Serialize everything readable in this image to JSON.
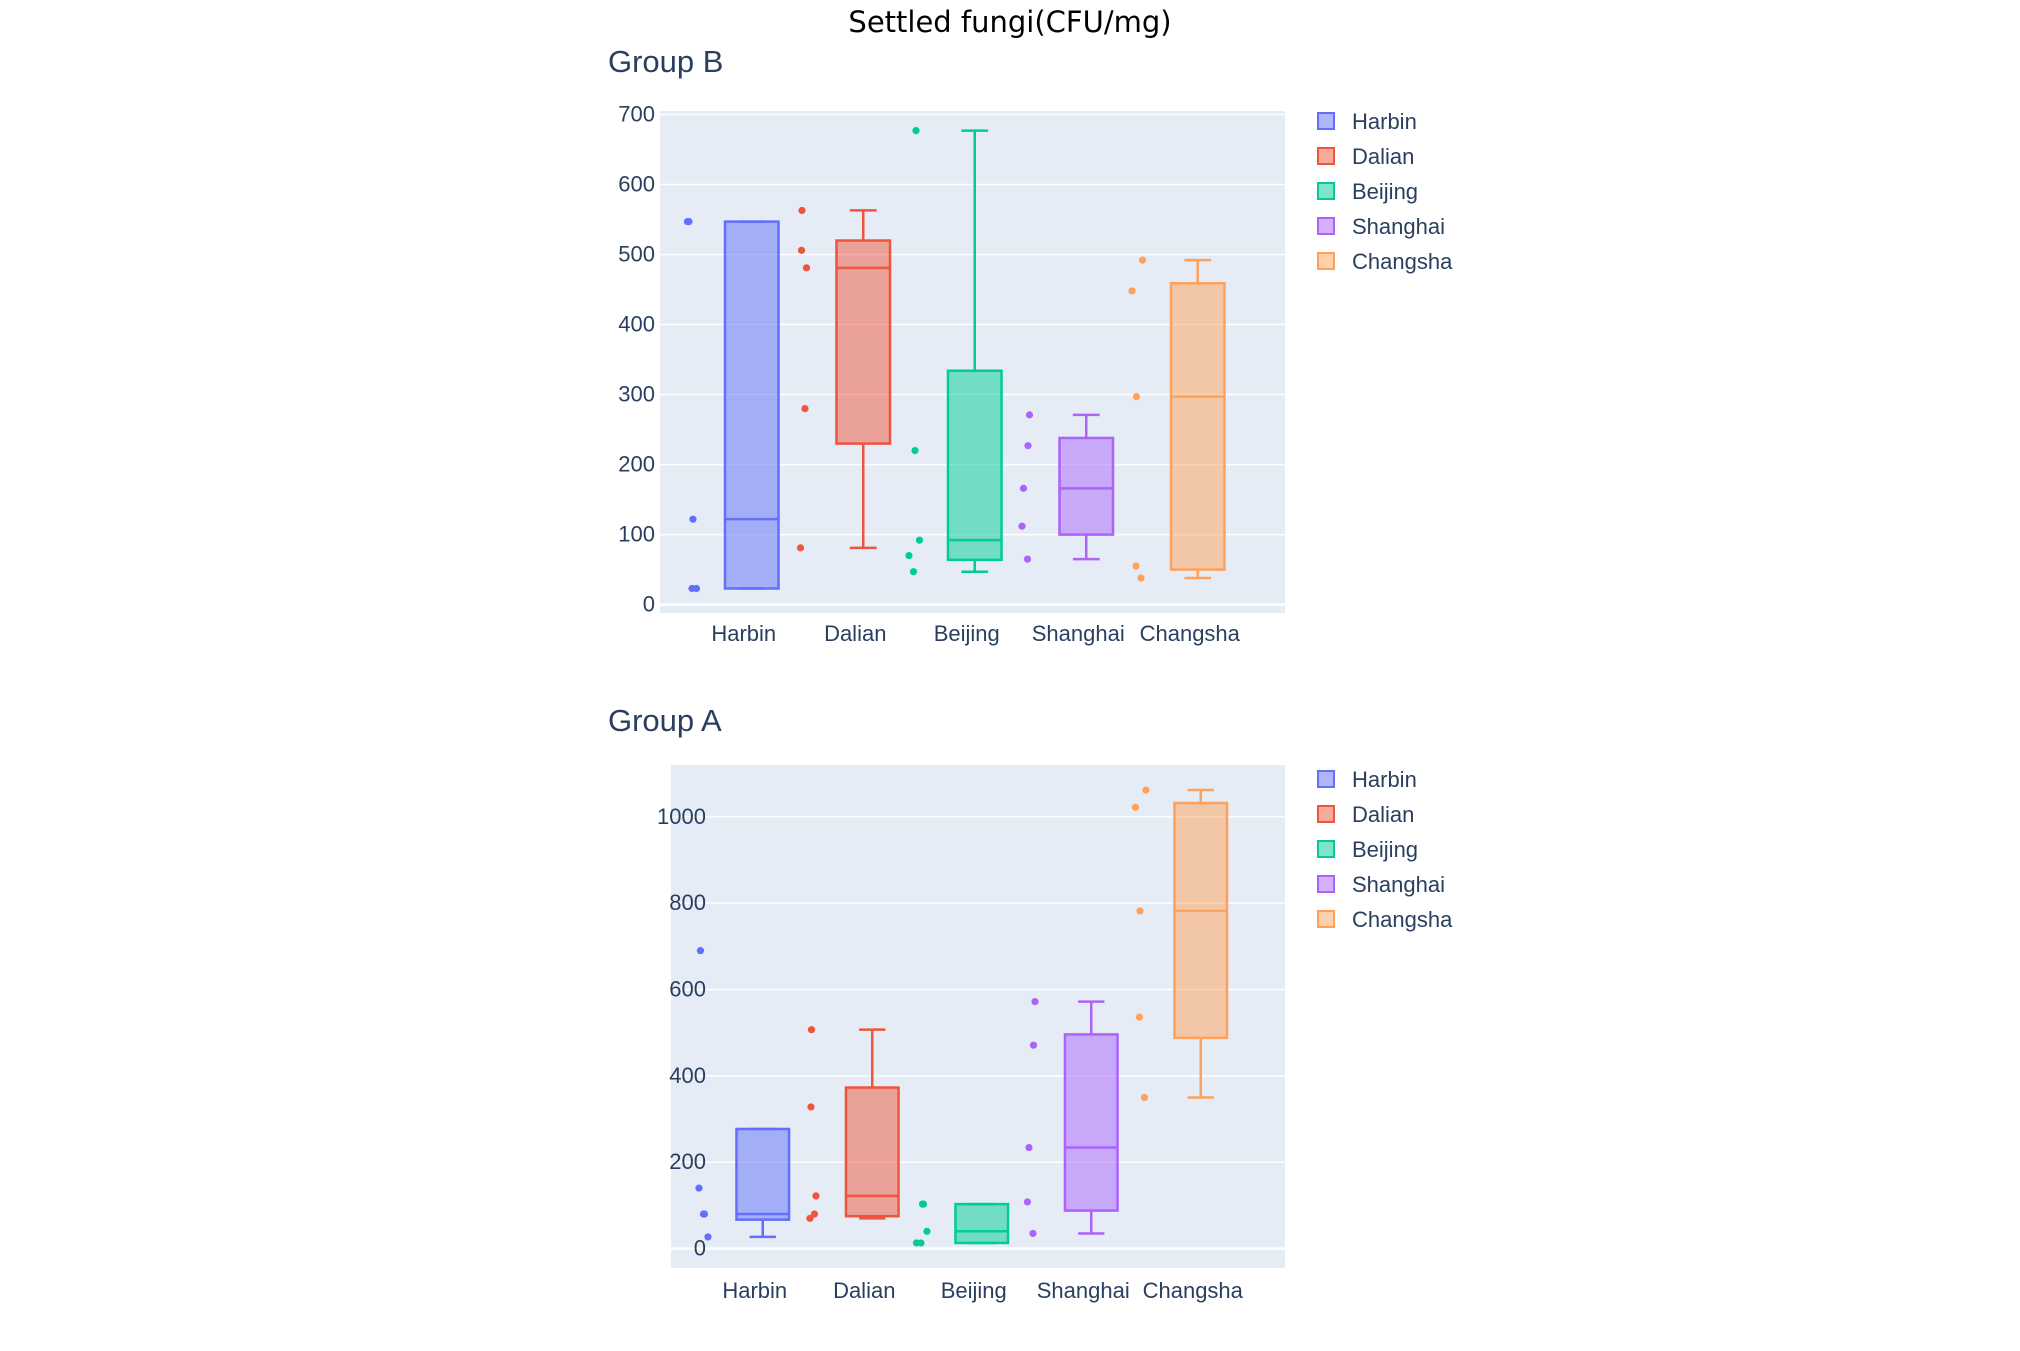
{
  "chart_data": {
    "title": "Settled fungi(CFU/mg)",
    "type": "box",
    "colors": {
      "Harbin": "#636efa",
      "Dalian": "#ef553b",
      "Beijing": "#00cc96",
      "Shanghai": "#ab63fa",
      "Changsha": "#ffa15a",
      "plot_bg": "#e5ecf6",
      "grid": "#ffffff",
      "text": "#2a3f5f"
    },
    "panels": [
      {
        "title": "Group B",
        "categories": [
          "Harbin",
          "Dalian",
          "Beijing",
          "Shanghai",
          "Changsha"
        ],
        "ylim": [
          -12,
          705
        ],
        "yticks": [
          0,
          100,
          200,
          300,
          400,
          500,
          600,
          700
        ],
        "legend": [
          "Harbin",
          "Dalian",
          "Beijing",
          "Shanghai",
          "Changsha"
        ],
        "series": [
          {
            "name": "Harbin",
            "points": [
              547,
              547,
              122,
              23,
              23
            ],
            "box": {
              "q1": 23,
              "median": 122,
              "q3": 547,
              "lower": 23,
              "upper": 547
            }
          },
          {
            "name": "Dalian",
            "points": [
              563,
              506,
              481,
              280,
              81
            ],
            "box": {
              "q1": 230,
              "median": 481,
              "q3": 520,
              "lower": 81,
              "upper": 563
            }
          },
          {
            "name": "Beijing",
            "points": [
              677,
              220,
              92,
              70,
              47
            ],
            "box": {
              "q1": 64,
              "median": 92,
              "q3": 334,
              "lower": 47,
              "upper": 677
            }
          },
          {
            "name": "Shanghai",
            "points": [
              271,
              227,
              166,
              112,
              65
            ],
            "box": {
              "q1": 100,
              "median": 166,
              "q3": 238,
              "lower": 65,
              "upper": 271
            }
          },
          {
            "name": "Changsha",
            "points": [
              492,
              448,
              297,
              55,
              38
            ],
            "box": {
              "q1": 50,
              "median": 297,
              "q3": 459,
              "lower": 38,
              "upper": 492
            }
          }
        ]
      },
      {
        "title": "Group A",
        "categories": [
          "Harbin",
          "Dalian",
          "Beijing",
          "Shanghai",
          "Changsha"
        ],
        "ylim": [
          -45,
          1120
        ],
        "yticks": [
          0,
          200,
          400,
          600,
          800,
          1000
        ],
        "legend": [
          "Harbin",
          "Dalian",
          "Beijing",
          "Shanghai",
          "Changsha"
        ],
        "series": [
          {
            "name": "Harbin",
            "points": [
              690,
              140,
              80,
              80,
              27
            ],
            "box": {
              "q1": 67,
              "median": 80,
              "q3": 277,
              "lower": 27,
              "upper": 277
            }
          },
          {
            "name": "Dalian",
            "points": [
              507,
              328,
              122,
              80,
              70
            ],
            "box": {
              "q1": 75,
              "median": 122,
              "q3": 373,
              "lower": 70,
              "upper": 507
            }
          },
          {
            "name": "Beijing",
            "points": [
              103,
              103,
              40,
              13,
              13
            ],
            "box": {
              "q1": 13,
              "median": 40,
              "q3": 103,
              "lower": 13,
              "upper": 103
            }
          },
          {
            "name": "Shanghai",
            "points": [
              572,
              471,
              234,
              108,
              35
            ],
            "box": {
              "q1": 88,
              "median": 234,
              "q3": 496,
              "lower": 35,
              "upper": 572
            }
          },
          {
            "name": "Changsha",
            "points": [
              1062,
              1022,
              782,
              536,
              350
            ],
            "box": {
              "q1": 488,
              "median": 782,
              "q3": 1032,
              "lower": 350,
              "upper": 1062
            }
          }
        ]
      }
    ]
  }
}
